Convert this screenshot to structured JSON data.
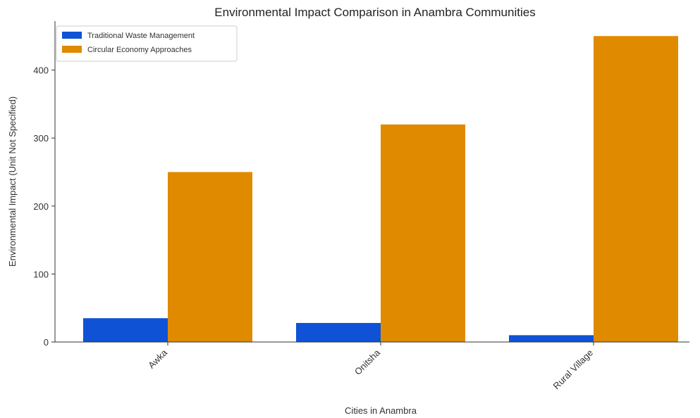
{
  "chart_data": {
    "type": "bar",
    "title": "Environmental Impact Comparison in Anambra Communities",
    "xlabel": "Cities in Anambra",
    "ylabel": "Environmental Impact (Unit Not Specified)",
    "categories": [
      "Awka",
      "Onitsha",
      "Rural Village"
    ],
    "series": [
      {
        "name": "Traditional Waste Management",
        "values": [
          35,
          28,
          10
        ],
        "color": "#0f52d6"
      },
      {
        "name": "Circular Economy Approaches",
        "values": [
          250,
          320,
          450
        ],
        "color": "#e08a00"
      }
    ],
    "ylim": [
      0,
      472
    ],
    "yticks": [
      0,
      100,
      200,
      300,
      400
    ],
    "grid": false,
    "legend_position": "top-left"
  }
}
